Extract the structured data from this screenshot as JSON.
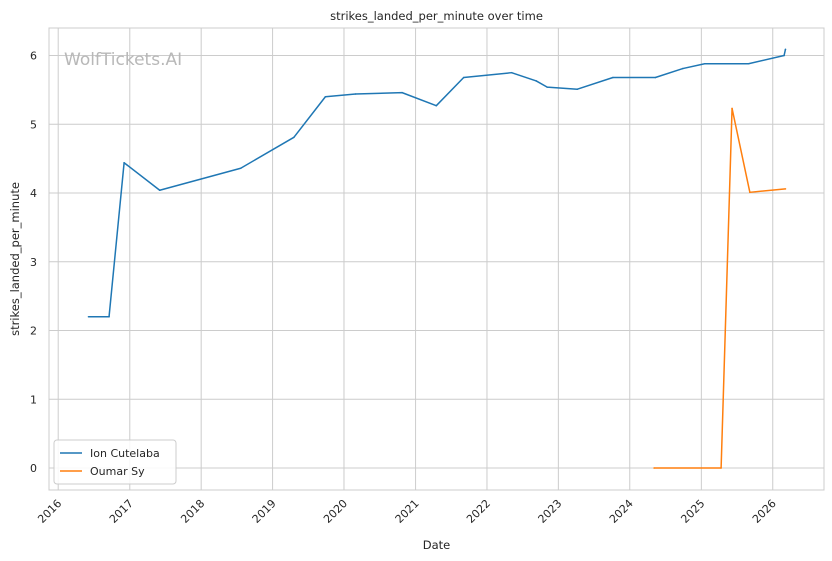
{
  "watermark": "WolfTickets.AI",
  "chart_data": {
    "type": "line",
    "title": "strikes_landed_per_minute over time",
    "xlabel": "Date",
    "ylabel": "strikes_landed_per_minute",
    "xlim": [
      "2015-11-15",
      "2026-09-20"
    ],
    "ylim": [
      -0.32,
      6.4
    ],
    "x_ticks": [
      "2016",
      "2017",
      "2018",
      "2019",
      "2020",
      "2021",
      "2022",
      "2023",
      "2024",
      "2025",
      "2026"
    ],
    "y_ticks": [
      0,
      1,
      2,
      3,
      4,
      5,
      6
    ],
    "grid": true,
    "legend_position": "lower-left",
    "series": [
      {
        "name": "Ion Cutelaba",
        "color": "#1f77b4",
        "points": [
          [
            "2016-06-04",
            2.2
          ],
          [
            "2016-09-17",
            2.2
          ],
          [
            "2016-12-03",
            4.44
          ],
          [
            "2017-06-03",
            4.04
          ],
          [
            "2018-07-22",
            4.36
          ],
          [
            "2019-04-20",
            4.81
          ],
          [
            "2019-09-28",
            5.4
          ],
          [
            "2020-02-29",
            5.44
          ],
          [
            "2020-10-24",
            5.46
          ],
          [
            "2021-04-17",
            5.27
          ],
          [
            "2021-09-04",
            5.68
          ],
          [
            "2022-05-07",
            5.75
          ],
          [
            "2022-09-10",
            5.63
          ],
          [
            "2022-11-05",
            5.54
          ],
          [
            "2023-04-08",
            5.51
          ],
          [
            "2023-10-07",
            5.68
          ],
          [
            "2024-05-11",
            5.68
          ],
          [
            "2024-09-28",
            5.81
          ],
          [
            "2025-01-18",
            5.88
          ],
          [
            "2025-08-30",
            5.88
          ],
          [
            "2026-02-28",
            6.0
          ],
          [
            "2026-03-07",
            6.09
          ]
        ]
      },
      {
        "name": "Oumar Sy",
        "color": "#ff7f0e",
        "points": [
          [
            "2024-05-04",
            0.0
          ],
          [
            "2025-04-12",
            0.0
          ],
          [
            "2025-06-07",
            5.23
          ],
          [
            "2025-09-06",
            4.01
          ],
          [
            "2026-03-07",
            4.06
          ]
        ]
      }
    ]
  }
}
